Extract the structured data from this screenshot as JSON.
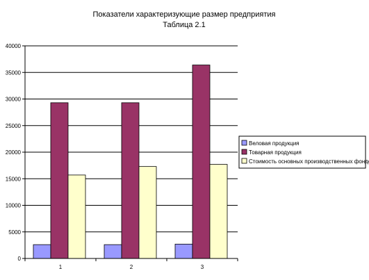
{
  "chart_data": {
    "type": "bar",
    "title": "Показатели характеризующие размер предприятия",
    "subtitle": "Таблица 2.1",
    "categories": [
      "1",
      "2",
      "3"
    ],
    "series": [
      {
        "name": "Веловая продукция",
        "values": [
          2600,
          2600,
          2700
        ],
        "color": "#9999FF"
      },
      {
        "name": "Товарная продукция",
        "values": [
          29300,
          29300,
          36400
        ],
        "color": "#993366"
      },
      {
        "name": "Стоимость основных производственных фондов",
        "values": [
          15700,
          17300,
          17700
        ],
        "color": "#FFFFCC"
      }
    ],
    "yticks": [
      "0",
      "5000",
      "10000",
      "15000",
      "20000",
      "25000",
      "30000",
      "35000",
      "40000"
    ],
    "ylim": [
      0,
      40000
    ],
    "grid": true,
    "legend_position": "right"
  }
}
